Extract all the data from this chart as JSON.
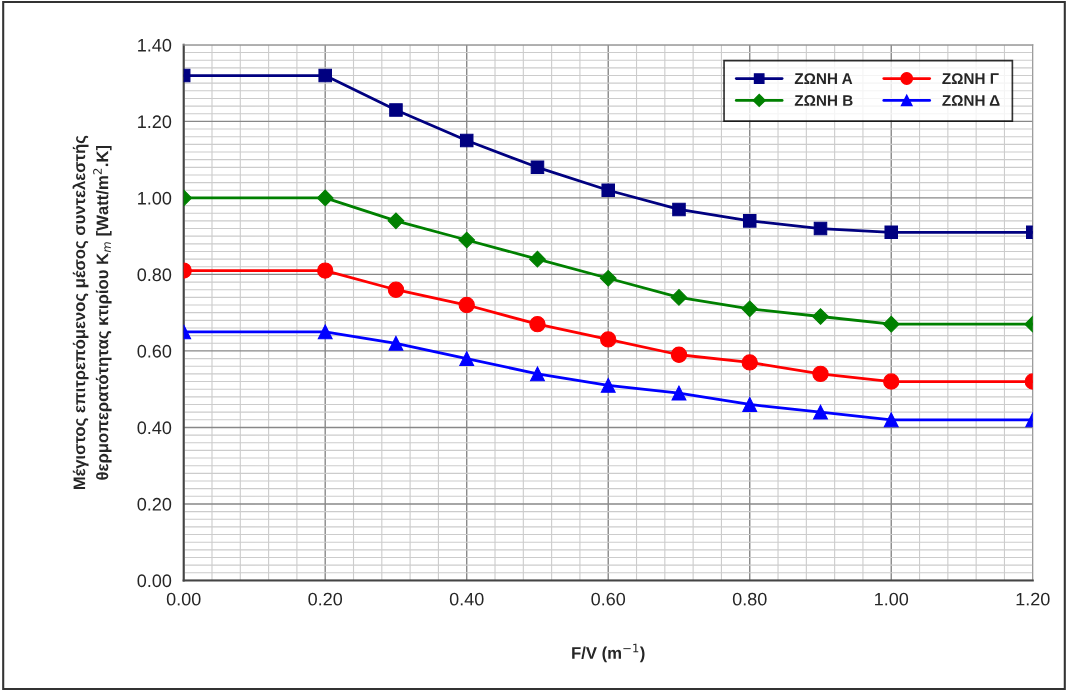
{
  "chart_data": {
    "type": "line",
    "xlabel": "F/V (m$^{−1}$)",
    "ylabel": "Μέγιστος επιτρεπόμενος μέσος συντελεστής\nθερμοπερατότητας κτιρίου K$_{m}$ [Watt/m$^{2}$.K]",
    "x": [
      0,
      0.2,
      0.3,
      0.4,
      0.5,
      0.6,
      0.7,
      0.8,
      0.9,
      1.0,
      1.2
    ],
    "series": [
      {
        "name": "ΖΩΝΗ Α",
        "color": "#000080",
        "marker": "square",
        "values": [
          1.32,
          1.32,
          1.23,
          1.15,
          1.08,
          1.02,
          0.97,
          0.94,
          0.92,
          0.91,
          0.91
        ]
      },
      {
        "name": "ΖΩΝΗ Β",
        "color": "#008000",
        "marker": "diamond",
        "values": [
          1.0,
          1.0,
          0.94,
          0.89,
          0.84,
          0.79,
          0.74,
          0.71,
          0.69,
          0.67,
          0.67
        ]
      },
      {
        "name": "ΖΩΝΗ Γ",
        "color": "#ff0000",
        "marker": "circle",
        "values": [
          0.81,
          0.81,
          0.76,
          0.72,
          0.67,
          0.63,
          0.59,
          0.57,
          0.54,
          0.52,
          0.52
        ]
      },
      {
        "name": "ΖΩΝΗ Δ",
        "color": "#0000ff",
        "marker": "triangle",
        "values": [
          0.65,
          0.65,
          0.62,
          0.58,
          0.54,
          0.51,
          0.49,
          0.46,
          0.44,
          0.42,
          0.42
        ]
      }
    ],
    "xlim": [
      0,
      1.2
    ],
    "xticks": [
      {
        "value": 0,
        "label": "0.00"
      },
      {
        "value": 0.2,
        "label": "0.20"
      },
      {
        "value": 0.4,
        "label": "0.40"
      },
      {
        "value": 0.6,
        "label": "0.60"
      },
      {
        "value": 0.8,
        "label": "0.80"
      },
      {
        "value": 1.0,
        "label": "1.00"
      },
      {
        "value": 1.2,
        "label": "1.20"
      }
    ],
    "ylim": [
      0,
      1.4
    ],
    "yticks": [
      {
        "value": 0,
        "label": "0.00"
      },
      {
        "value": 0.2,
        "label": "0.20"
      },
      {
        "value": 0.4,
        "label": "0.40"
      },
      {
        "value": 0.6,
        "label": "0.60"
      },
      {
        "value": 0.8,
        "label": "0.80"
      },
      {
        "value": 1.0,
        "label": "1.00"
      },
      {
        "value": 1.2,
        "label": "1.20"
      },
      {
        "value": 1.4,
        "label": "1.40"
      }
    ],
    "grid": true,
    "legend": "top right",
    "line_style": "solid"
  }
}
